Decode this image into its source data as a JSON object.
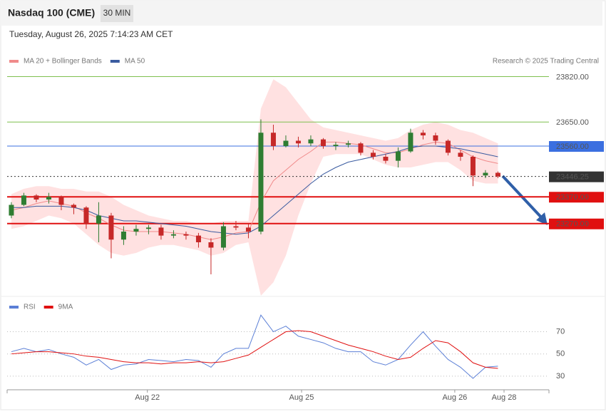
{
  "header": {
    "title": "Nasdaq 100 (CME)",
    "interval": "30 MIN",
    "date": "Tuesday, August 26, 2025 7:14:23 AM CET",
    "credit": "Research © 2025 Trading Central"
  },
  "chart_data": [
    {
      "type": "candlestick",
      "x": [
        0,
        1,
        2,
        3,
        4,
        5,
        6,
        7,
        8,
        9,
        10,
        11,
        12,
        13,
        14,
        15,
        16,
        17,
        18,
        19,
        20,
        21,
        22,
        23,
        24,
        25,
        26,
        27,
        28,
        29,
        30,
        31,
        32,
        33,
        34,
        35,
        36,
        37,
        38,
        39
      ],
      "open": [
        23300,
        23340,
        23375,
        23360,
        23370,
        23340,
        23330,
        23270,
        23300,
        23210,
        23240,
        23250,
        23255,
        23225,
        23230,
        23225,
        23200,
        23180,
        23260,
        23255,
        23240,
        23610,
        23560,
        23580,
        23570,
        23585,
        23560,
        23565,
        23570,
        23535,
        23520,
        23505,
        23540,
        23610,
        23600,
        23580,
        23535,
        23520,
        23450,
        23460
      ],
      "high": [
        23350,
        23385,
        23380,
        23385,
        23375,
        23345,
        23335,
        23350,
        23310,
        23260,
        23265,
        23265,
        23265,
        23245,
        23240,
        23235,
        23215,
        23275,
        23280,
        23270,
        23660,
        23640,
        23600,
        23595,
        23600,
        23590,
        23575,
        23580,
        23575,
        23545,
        23530,
        23555,
        23625,
        23620,
        23610,
        23585,
        23545,
        23525,
        23470,
        23465
      ],
      "low": [
        23290,
        23335,
        23350,
        23345,
        23320,
        23305,
        23250,
        23200,
        23140,
        23190,
        23225,
        23230,
        23210,
        23215,
        23210,
        23180,
        23080,
        23170,
        23245,
        23215,
        23230,
        23545,
        23555,
        23555,
        23560,
        23550,
        23545,
        23555,
        23525,
        23510,
        23495,
        23480,
        23535,
        23585,
        23565,
        23525,
        23505,
        23410,
        23440,
        23440
      ],
      "close": [
        23340,
        23375,
        23360,
        23370,
        23340,
        23330,
        23270,
        23300,
        23210,
        23240,
        23250,
        23255,
        23225,
        23230,
        23225,
        23200,
        23180,
        23260,
        23255,
        23240,
        23610,
        23560,
        23580,
        23570,
        23585,
        23560,
        23565,
        23570,
        23535,
        23520,
        23505,
        23540,
        23610,
        23600,
        23580,
        23535,
        23520,
        23450,
        23460,
        23446.25
      ],
      "up_color": "#2f7d32",
      "down_color": "#c62828",
      "series": [
        {
          "name": "MA 20 + Bollinger Bands",
          "color": "#f08a8a",
          "band_color": "#ffd9d9",
          "values": [
            23320,
            23330,
            23345,
            23355,
            23345,
            23335,
            23310,
            23290,
            23265,
            23245,
            23240,
            23240,
            23240,
            23235,
            23230,
            23220,
            23210,
            23220,
            23235,
            23240,
            23350,
            23430,
            23470,
            23510,
            23540,
            23575,
            23575,
            23570,
            23565,
            23550,
            23535,
            23535,
            23550,
            23565,
            23575,
            23570,
            23545,
            23520,
            23505,
            23495
          ],
          "upper": [
            23380,
            23400,
            23410,
            23410,
            23400,
            23400,
            23390,
            23390,
            23370,
            23340,
            23320,
            23300,
            23290,
            23280,
            23280,
            23270,
            23270,
            23280,
            23280,
            23280,
            23700,
            23810,
            23780,
            23720,
            23660,
            23630,
            23620,
            23610,
            23600,
            23590,
            23580,
            23590,
            23620,
            23640,
            23650,
            23640,
            23620,
            23610,
            23590,
            23570
          ],
          "lower": [
            23250,
            23260,
            23280,
            23300,
            23290,
            23270,
            23230,
            23190,
            23160,
            23150,
            23160,
            23180,
            23190,
            23190,
            23180,
            23170,
            23150,
            23160,
            23190,
            23200,
            23000,
            23050,
            23150,
            23300,
            23420,
            23520,
            23530,
            23530,
            23530,
            23510,
            23490,
            23480,
            23480,
            23490,
            23500,
            23500,
            23470,
            23430,
            23420,
            23420
          ]
        },
        {
          "name": "MA 50",
          "color": "#3a5ba0",
          "values": [
            23330,
            23330,
            23335,
            23335,
            23335,
            23330,
            23320,
            23300,
            23290,
            23280,
            23280,
            23275,
            23270,
            23265,
            23260,
            23250,
            23240,
            23235,
            23230,
            23235,
            23260,
            23300,
            23340,
            23380,
            23420,
            23455,
            23480,
            23500,
            23510,
            23520,
            23530,
            23540,
            23555,
            23560,
            23560,
            23555,
            23550,
            23540,
            23530,
            23520
          ]
        }
      ],
      "levels": [
        {
          "value": 23820,
          "label": "23820.00",
          "color": "#7fbf4f",
          "box": false
        },
        {
          "value": 23650,
          "label": "23650.00",
          "color": "#7fbf4f",
          "box": false
        },
        {
          "value": 23560,
          "label": "23560.00",
          "color": "#3b6fe0",
          "box": true
        },
        {
          "value": 23446.25,
          "label": "23446.25",
          "color": "#333333",
          "box": true,
          "dotted": true
        },
        {
          "value": 23370,
          "label": "23370.00",
          "color": "#e01010",
          "box": true,
          "thick": true
        },
        {
          "value": 23270,
          "label": "23270.00",
          "color": "#e01010",
          "box": true,
          "thick": true
        }
      ],
      "xlim": [
        -0.34,
        43.09
      ],
      "ylim": [
        23000,
        23840
      ]
    },
    {
      "type": "line",
      "x": [
        0,
        1,
        2,
        3,
        4,
        5,
        6,
        7,
        8,
        9,
        10,
        11,
        12,
        13,
        14,
        15,
        16,
        17,
        18,
        19,
        20,
        21,
        22,
        23,
        24,
        25,
        26,
        27,
        28,
        29,
        30,
        31,
        32,
        33,
        34,
        35,
        36,
        37,
        38,
        39
      ],
      "series": [
        {
          "name": "RSI",
          "color": "#5b7fd6",
          "values": [
            52,
            55,
            52,
            54,
            50,
            47,
            40,
            45,
            36,
            40,
            41,
            45,
            44,
            43,
            45,
            44,
            38,
            50,
            55,
            55,
            85,
            70,
            75,
            66,
            63,
            60,
            55,
            52,
            52,
            43,
            40,
            45,
            58,
            70,
            57,
            45,
            38,
            28,
            38,
            39
          ]
        },
        {
          "name": "9MA",
          "color": "#e01010",
          "values": [
            50,
            51,
            52,
            52,
            51,
            50,
            48,
            47,
            45,
            43,
            42,
            42,
            41,
            42,
            42,
            43,
            42,
            43,
            46,
            49,
            56,
            63,
            70,
            71,
            70,
            66,
            62,
            58,
            55,
            52,
            48,
            45,
            47,
            55,
            62,
            60,
            52,
            42,
            38,
            37
          ]
        }
      ],
      "xlim": [
        -0.34,
        43.09
      ],
      "ylim": [
        19,
        96
      ],
      "yticks": [
        30,
        50,
        70
      ],
      "xticks": [
        {
          "value": 10.9,
          "label": "Aug 22"
        },
        {
          "value": 23.26,
          "label": "Aug 25"
        },
        {
          "value": 35.54,
          "label": "Aug 26"
        },
        {
          "value": 39.49,
          "label": "Aug 28"
        }
      ]
    }
  ]
}
